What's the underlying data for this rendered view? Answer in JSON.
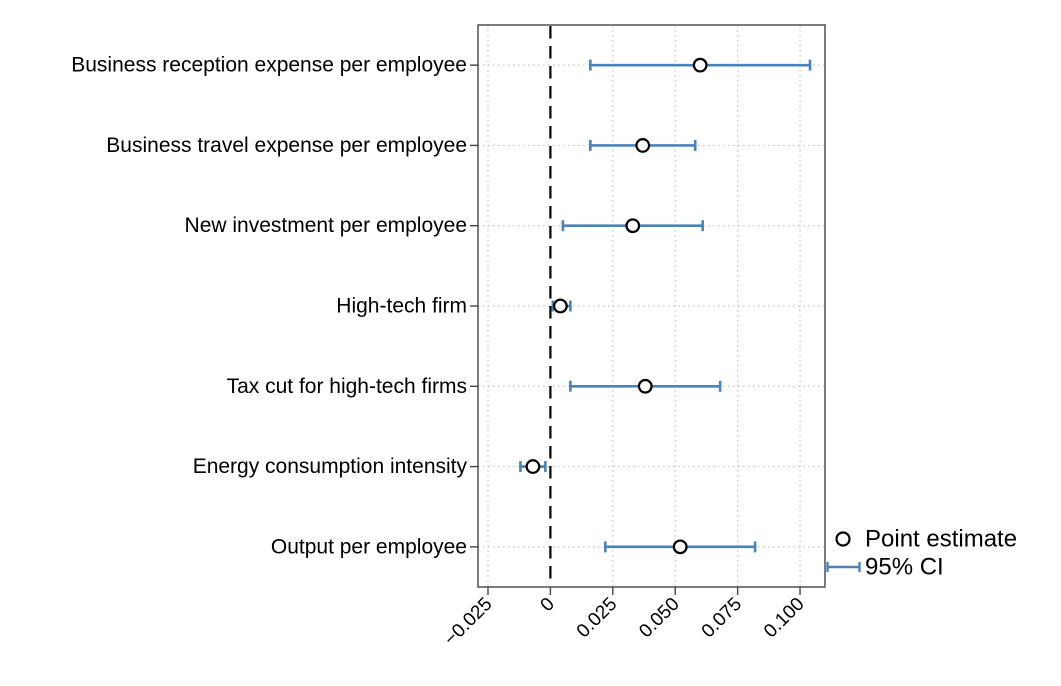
{
  "chart_data": {
    "type": "scatter",
    "variant": "horizontal-coefficient-errorbar-plot",
    "title": "",
    "xlabel": "",
    "ylabel": "",
    "xlim": [
      -0.029,
      0.11
    ],
    "grid": "dotted, both axes",
    "legend_position": "outside-right-bottom",
    "rows": [
      {
        "label": "Business reception expense per employee",
        "estimate": 0.06,
        "ci_low": 0.016,
        "ci_high": 0.104
      },
      {
        "label": "Business travel expense per employee",
        "estimate": 0.037,
        "ci_low": 0.016,
        "ci_high": 0.058
      },
      {
        "label": "New investment per employee",
        "estimate": 0.033,
        "ci_low": 0.005,
        "ci_high": 0.061
      },
      {
        "label": "High-tech firm",
        "estimate": 0.004,
        "ci_low": 0.001,
        "ci_high": 0.008
      },
      {
        "label": "Tax cut for high-tech firms",
        "estimate": 0.038,
        "ci_low": 0.008,
        "ci_high": 0.068
      },
      {
        "label": "Energy consumption intensity",
        "estimate": -0.007,
        "ci_low": -0.012,
        "ci_high": -0.002
      },
      {
        "label": "Output per employee",
        "estimate": 0.052,
        "ci_low": 0.022,
        "ci_high": 0.082
      }
    ],
    "xticks": [
      -0.025,
      0,
      0.025,
      0.05,
      0.075,
      0.1
    ],
    "xtick_labels": [
      "−0.025",
      "0",
      "0.025",
      "0.050",
      "0.075",
      "0.100"
    ],
    "zero_line_at": 0,
    "legend": [
      {
        "label": "Point estimate",
        "marker": "open-circle"
      },
      {
        "label": "95% CI",
        "marker": "errorbar"
      }
    ],
    "colors": {
      "ci": "#4a83b7",
      "marker_fill": "#ffffff",
      "marker_edge": "#000000",
      "zero_line": "#000000",
      "grid": "#c6c6c6",
      "frame": "#444444",
      "text": "#000000",
      "background": "#ffffff"
    }
  }
}
